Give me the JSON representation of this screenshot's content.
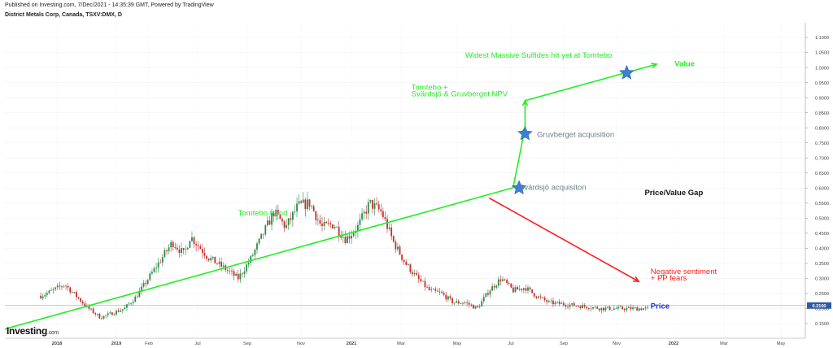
{
  "header": {
    "published": "Published on Investing.com, 7/Dec/2021 - 14:35:39 GMT, Powered by TradingView",
    "instrument": "District Metals Corp, Canada, TSXV:DMX, D"
  },
  "logo": {
    "text": "Investing",
    "suffix": ".com"
  },
  "chart_data": {
    "type": "candlestick",
    "x_ticks": [
      "2018",
      "2019",
      "Feb",
      "Jul",
      "Sep",
      "Nov",
      "2021",
      "Mar",
      "May",
      "Jul",
      "Sep",
      "Nov",
      "2022",
      "Mar",
      "May"
    ],
    "y_ticks": [
      "1.1000",
      "1.0500",
      "1.0000",
      "0.9500",
      "0.9000",
      "0.8500",
      "0.8000",
      "0.7500",
      "0.7000",
      "0.6500",
      "0.6000",
      "0.5500",
      "0.5000",
      "0.4500",
      "0.4000",
      "0.3500",
      "0.3000",
      "0.2500",
      "0.2000",
      "0.1500"
    ],
    "ylim": [
      0.12,
      1.12
    ],
    "last_price": "0.2100",
    "price_anchors": [
      {
        "t": 0,
        "v": 0.2
      },
      {
        "t": 0.03,
        "v": 0.22
      },
      {
        "t": 0.07,
        "v": 0.25
      },
      {
        "t": 0.1,
        "v": 0.28
      },
      {
        "t": 0.14,
        "v": 0.2
      },
      {
        "t": 0.16,
        "v": 0.17
      },
      {
        "t": 0.2,
        "v": 0.2
      },
      {
        "t": 0.22,
        "v": 0.24
      },
      {
        "t": 0.25,
        "v": 0.33
      },
      {
        "t": 0.28,
        "v": 0.42
      },
      {
        "t": 0.3,
        "v": 0.38
      },
      {
        "t": 0.31,
        "v": 0.44
      },
      {
        "t": 0.34,
        "v": 0.37
      },
      {
        "t": 0.37,
        "v": 0.33
      },
      {
        "t": 0.39,
        "v": 0.3
      },
      {
        "t": 0.41,
        "v": 0.36
      },
      {
        "t": 0.43,
        "v": 0.44
      },
      {
        "t": 0.45,
        "v": 0.52
      },
      {
        "t": 0.47,
        "v": 0.47
      },
      {
        "t": 0.49,
        "v": 0.54
      },
      {
        "t": 0.51,
        "v": 0.55
      },
      {
        "t": 0.53,
        "v": 0.47
      },
      {
        "t": 0.55,
        "v": 0.48
      },
      {
        "t": 0.57,
        "v": 0.43
      },
      {
        "t": 0.59,
        "v": 0.47
      },
      {
        "t": 0.61,
        "v": 0.55
      },
      {
        "t": 0.63,
        "v": 0.52
      },
      {
        "t": 0.65,
        "v": 0.42
      },
      {
        "t": 0.67,
        "v": 0.35
      },
      {
        "t": 0.69,
        "v": 0.3
      },
      {
        "t": 0.71,
        "v": 0.26
      },
      {
        "t": 0.73,
        "v": 0.25
      },
      {
        "t": 0.75,
        "v": 0.22
      },
      {
        "t": 0.77,
        "v": 0.22
      },
      {
        "t": 0.79,
        "v": 0.2
      },
      {
        "t": 0.81,
        "v": 0.26
      },
      {
        "t": 0.83,
        "v": 0.3
      },
      {
        "t": 0.85,
        "v": 0.26
      },
      {
        "t": 0.87,
        "v": 0.27
      },
      {
        "t": 0.89,
        "v": 0.24
      },
      {
        "t": 0.91,
        "v": 0.22
      },
      {
        "t": 1.0,
        "v": 0.2
      }
    ],
    "trendlines": [
      {
        "color": "#22ee22",
        "points": [
          [
            0,
            0.132
          ],
          [
            0.85,
            0.601
          ]
        ]
      },
      {
        "color": "#22ee22",
        "points": [
          [
            0.85,
            0.601
          ],
          [
            0.87,
            0.8
          ]
        ]
      },
      {
        "color": "#22ee22",
        "points": [
          [
            0.87,
            0.8
          ],
          [
            0.87,
            0.89
          ]
        ]
      },
      {
        "color": "#22ee22",
        "points": [
          [
            0.87,
            0.89
          ],
          [
            1.09,
            1.011
          ]
        ]
      },
      {
        "color": "#ff2020",
        "points": [
          [
            0.81,
            0.567
          ],
          [
            1.06,
            0.29
          ]
        ]
      }
    ],
    "stars": [
      {
        "t": 0.86,
        "v": 0.6
      },
      {
        "t": 0.87,
        "v": 0.78
      },
      {
        "t": 1.04,
        "v": 0.982
      }
    ],
    "annotations": [
      {
        "text": "Widest Massive Sulfides hit yet at Tomtebo",
        "color": "#22ee22",
        "at": [
          0.77,
          1.033
        ]
      },
      {
        "text": "Value",
        "color": "#22ee22",
        "bold": true,
        "at": [
          1.12,
          1.004
        ]
      },
      {
        "text": "Tomtebo +",
        "color": "#22ee22",
        "at": [
          0.68,
          0.926
        ]
      },
      {
        "text": "Svärdsjö & Gruvberget NPV",
        "color": "#22ee22",
        "at": [
          0.68,
          0.904
        ]
      },
      {
        "text": "Gruvberget acquisition",
        "color": "#6d7f86",
        "at": [
          0.89,
          0.77
        ]
      },
      {
        "text": "Svärdsjö acquisiton",
        "color": "#6d7f86",
        "at": [
          0.86,
          0.594
        ]
      },
      {
        "text": "Price/Value Gap",
        "color": "#111111",
        "bold": true,
        "at": [
          1.07,
          0.577
        ]
      },
      {
        "text": "Tomtebo trend",
        "color": "#22ee22",
        "at": [
          0.39,
          0.509
        ]
      },
      {
        "text": "Negative sentiment",
        "color": "#ff2020",
        "at": [
          1.08,
          0.314
        ]
      },
      {
        "text": "+ PP fears",
        "color": "#ff2020",
        "at": [
          1.08,
          0.293
        ]
      },
      {
        "text": "Price",
        "color": "#1a2cd6",
        "bold": true,
        "at": [
          1.08,
          0.2
        ]
      }
    ]
  }
}
